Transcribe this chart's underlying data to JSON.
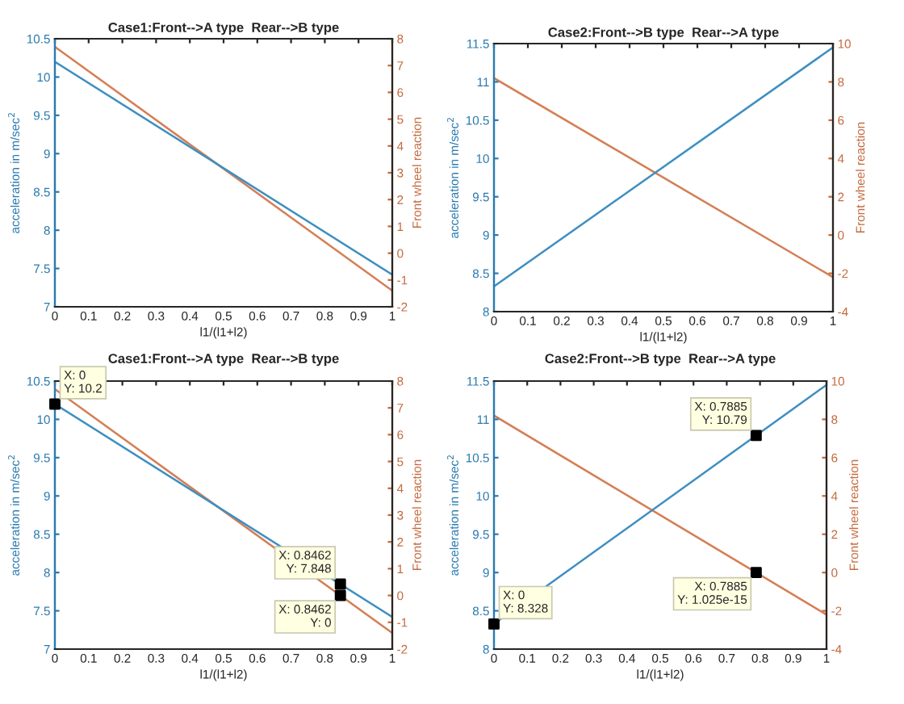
{
  "chart_data": [
    {
      "type": "line",
      "title": "Case1:Front-->A type  Rear-->B type",
      "xlabel": "l1/(l1+l2)",
      "ylabel": "acceleration in m/sec$^{2}$",
      "y2label": "Front wheel reaction",
      "xlim": [
        0,
        1
      ],
      "xticks": [
        0,
        0.1,
        0.2,
        0.3,
        0.4,
        0.5,
        0.6,
        0.7,
        0.8,
        0.9,
        1
      ],
      "ylim": [
        7,
        10.5
      ],
      "yticks": [
        7,
        7.5,
        8,
        8.5,
        9,
        9.5,
        10,
        10.5
      ],
      "y2lim": [
        -2,
        8
      ],
      "y2ticks": [
        -2,
        -1,
        0,
        1,
        2,
        3,
        4,
        5,
        6,
        7,
        8
      ],
      "grid": false,
      "legend": false,
      "marker": "none",
      "line_style": "solid",
      "series": [
        {
          "color": "#3d8fc1",
          "x": [
            0,
            1
          ],
          "values": [
            10.2,
            7.42
          ]
        },
        {
          "color": "#d47f55",
          "axis": "y2",
          "x": [
            0,
            1
          ],
          "values": [
            7.7,
            -1.4
          ]
        }
      ]
    },
    {
      "type": "line",
      "title": "Case2:Front-->B type  Rear-->A type",
      "xlabel": "l1/(l1+l2)",
      "ylabel": "acceleration in m/sec$^{2}$",
      "y2label": "Front wheel reaction",
      "xlim": [
        0,
        1
      ],
      "xticks": [
        0,
        0.1,
        0.2,
        0.3,
        0.4,
        0.5,
        0.6,
        0.7,
        0.8,
        0.9,
        1
      ],
      "ylim": [
        8,
        11.5
      ],
      "yticks": [
        8,
        8.5,
        9,
        9.5,
        10,
        10.5,
        11,
        11.5
      ],
      "y2lim": [
        -4,
        10
      ],
      "y2ticks": [
        -4,
        -2,
        0,
        2,
        4,
        6,
        8,
        10
      ],
      "grid": false,
      "legend": false,
      "marker": "none",
      "line_style": "solid",
      "series": [
        {
          "color": "#3d8fc1",
          "x": [
            0,
            1
          ],
          "values": [
            8.33,
            11.45
          ]
        },
        {
          "color": "#d47f55",
          "axis": "y2",
          "x": [
            0,
            1
          ],
          "values": [
            8.2,
            -2.2
          ]
        }
      ]
    },
    {
      "type": "line",
      "title": "Case1:Front-->A type  Rear-->B type",
      "xlabel": "l1/(l1+l2)",
      "ylabel": "acceleration in m/sec$^{2}$",
      "y2label": "Front wheel reaction",
      "xlim": [
        0,
        1
      ],
      "xticks": [
        0,
        0.1,
        0.2,
        0.3,
        0.4,
        0.5,
        0.6,
        0.7,
        0.8,
        0.9,
        1
      ],
      "ylim": [
        7,
        10.5
      ],
      "yticks": [
        7,
        7.5,
        8,
        8.5,
        9,
        9.5,
        10,
        10.5
      ],
      "y2lim": [
        -2,
        8
      ],
      "y2ticks": [
        -2,
        -1,
        0,
        1,
        2,
        3,
        4,
        5,
        6,
        7,
        8
      ],
      "grid": false,
      "legend": false,
      "marker": "none",
      "line_style": "solid",
      "series": [
        {
          "color": "#3d8fc1",
          "x": [
            0,
            1
          ],
          "values": [
            10.2,
            7.42
          ]
        },
        {
          "color": "#d47f55",
          "axis": "y2",
          "x": [
            0,
            1
          ],
          "values": [
            7.7,
            -1.4
          ]
        },
        {
          "type": "scatter",
          "marker": "square",
          "color": "#000000",
          "x": [
            0,
            0.8462
          ],
          "values": [
            10.2,
            7.848
          ],
          "value_labels": [
            "X: 0\nY: 10.2",
            "X: 0.8462\nY: 7.848"
          ]
        },
        {
          "type": "scatter",
          "marker": "square",
          "color": "#000000",
          "axis": "y2",
          "x": [
            0.8462
          ],
          "values": [
            0
          ],
          "value_labels": [
            "X: 0.8462\nY: 0"
          ]
        }
      ]
    },
    {
      "type": "line",
      "title": "Case2:Front-->B type  Rear-->A type",
      "xlabel": "l1/(l1+l2)",
      "ylabel": "acceleration in m/sec$^{2}$",
      "y2label": "Front wheel reaction",
      "xlim": [
        0,
        1
      ],
      "xticks": [
        0,
        0.1,
        0.2,
        0.3,
        0.4,
        0.5,
        0.6,
        0.7,
        0.8,
        0.9,
        1
      ],
      "ylim": [
        8,
        11.5
      ],
      "yticks": [
        8,
        8.5,
        9,
        9.5,
        10,
        10.5,
        11,
        11.5
      ],
      "y2lim": [
        -4,
        10
      ],
      "y2ticks": [
        -4,
        -2,
        0,
        2,
        4,
        6,
        8,
        10
      ],
      "grid": false,
      "legend": false,
      "marker": "none",
      "line_style": "solid",
      "series": [
        {
          "color": "#3d8fc1",
          "x": [
            0,
            1
          ],
          "values": [
            8.33,
            11.45
          ]
        },
        {
          "color": "#d47f55",
          "axis": "y2",
          "x": [
            0,
            1
          ],
          "values": [
            8.2,
            -2.2
          ]
        },
        {
          "type": "scatter",
          "marker": "square",
          "color": "#000000",
          "x": [
            0,
            0.7885
          ],
          "values": [
            8.328,
            10.79
          ],
          "value_labels": [
            "X: 0\nY: 8.328",
            "X: 0.7885\nY: 10.79"
          ]
        },
        {
          "type": "scatter",
          "marker": "square",
          "color": "#000000",
          "axis": "y2",
          "x": [
            0.7885
          ],
          "values": [
            1.025e-15
          ],
          "value_labels": [
            "X: 0.7885\nY: 1.025e-15"
          ]
        }
      ]
    }
  ]
}
